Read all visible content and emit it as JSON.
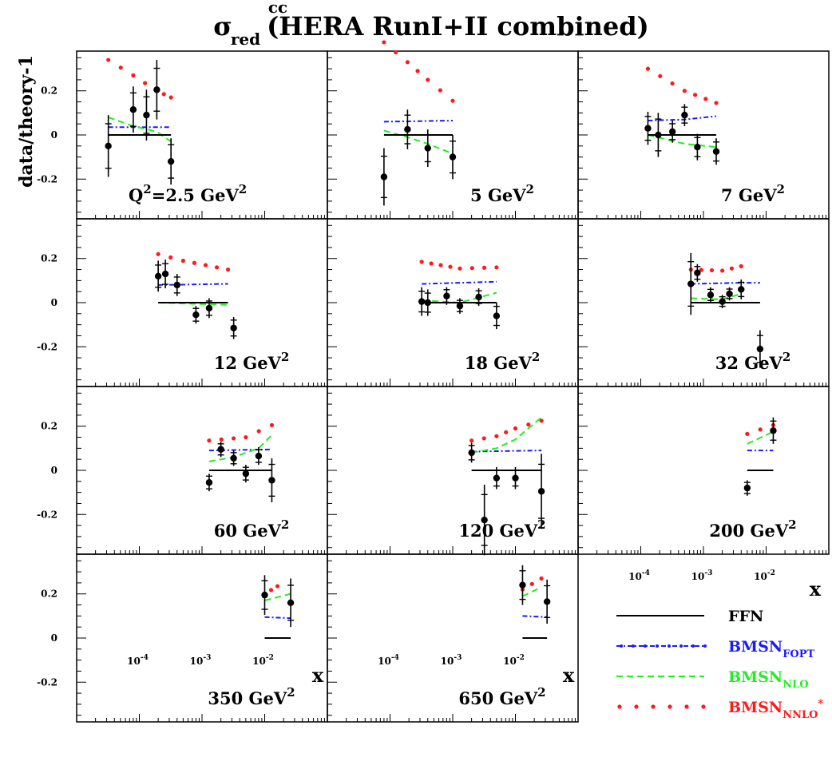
{
  "chart_data": {
    "type": "scatter",
    "title": {
      "sigma": "σ",
      "sup": "cc",
      "sub": "red",
      "text": "(HERA RunI+II combined)"
    },
    "ylabel": "data/theory-1",
    "xlabel": "x",
    "xscale": "log",
    "xlim": [
      1e-05,
      0.1
    ],
    "ylim": [
      -0.38,
      0.38
    ],
    "yticks": [
      {
        "value": 0.2,
        "label": "0.2"
      },
      {
        "value": 0,
        "label": "0"
      },
      {
        "value": -0.2,
        "label": "-0.2"
      }
    ],
    "xticks": [
      {
        "value": 0.0001,
        "base": "10",
        "exp": "-4"
      },
      {
        "value": 0.001,
        "base": "10",
        "exp": "-3"
      },
      {
        "value": 0.01,
        "base": "10",
        "exp": "-2"
      }
    ],
    "colors": {
      "FFN": "#000000",
      "BMSN_FOPT": "#1a1aff",
      "BMSN_NLO": "#22ee22",
      "BMSN_NNLO": "#ff1a1a",
      "data": "#000000"
    },
    "legend": {
      "placement": "bottom-right",
      "entries": [
        {
          "key": "FFN",
          "label": "FFN",
          "sub": "",
          "sup": ""
        },
        {
          "key": "BMSN_FOPT",
          "label": "BMSN",
          "sub": "FOPT",
          "sup": ""
        },
        {
          "key": "BMSN_NLO",
          "label": "BMSN",
          "sub": "NLO",
          "sup": ""
        },
        {
          "key": "BMSN_NNLO",
          "label": "BMSN",
          "sub": "NNLO",
          "sup": "*"
        }
      ]
    },
    "panels": [
      {
        "label_pre": "Q",
        "label_pre_sup": "2",
        "label": "=2.5 GeV",
        "label_sup": "2",
        "data": [
          [
            3.2e-05,
            -0.05,
            0.14
          ],
          [
            8e-05,
            0.115,
            0.105
          ],
          [
            0.00013,
            0.09,
            0.115
          ],
          [
            0.00019,
            0.205,
            0.135
          ],
          [
            0.00032,
            -0.12,
            0.105
          ]
        ],
        "FFN": [
          3.2e-05,
          0.00032
        ],
        "BMSN_FOPT": [
          [
            3.2e-05,
            0.035
          ],
          [
            0.00032,
            0.035
          ]
        ],
        "BMSN_NLO": [
          [
            3.2e-05,
            0.08
          ],
          [
            8e-05,
            0.04
          ],
          [
            0.00019,
            0.015
          ],
          [
            0.00032,
            -0.03
          ]
        ],
        "BMSN_NNLO": [
          [
            3.2e-05,
            0.34
          ],
          [
            8e-05,
            0.27
          ],
          [
            0.00019,
            0.2
          ],
          [
            0.00032,
            0.17
          ]
        ]
      },
      {
        "label_pre": "",
        "label_pre_sup": "",
        "label": "5 GeV",
        "label_sup": "2",
        "data": [
          [
            8e-05,
            -0.19,
            0.13
          ],
          [
            0.00019,
            0.025,
            0.09
          ],
          [
            0.0004,
            -0.06,
            0.085
          ],
          [
            0.001,
            -0.1,
            0.1
          ]
        ],
        "FFN": [
          8e-05,
          0.001
        ],
        "BMSN_FOPT": [
          [
            8e-05,
            0.06
          ],
          [
            0.001,
            0.065
          ]
        ],
        "BMSN_NLO": [
          [
            8e-05,
            0.02
          ],
          [
            0.00019,
            -0.01
          ],
          [
            0.0004,
            -0.04
          ],
          [
            0.001,
            -0.085
          ]
        ],
        "BMSN_NNLO": [
          [
            8e-05,
            0.42
          ],
          [
            0.00019,
            0.33
          ],
          [
            0.0004,
            0.25
          ],
          [
            0.001,
            0.155
          ]
        ]
      },
      {
        "label_pre": "",
        "label_pre_sup": "",
        "label": "7 GeV",
        "label_sup": "2",
        "data": [
          [
            0.00013,
            0.03,
            0.075
          ],
          [
            0.00019,
            0.0,
            0.1
          ],
          [
            0.00032,
            0.015,
            0.05
          ],
          [
            0.0005,
            0.09,
            0.05
          ],
          [
            0.0008,
            -0.055,
            0.06
          ],
          [
            0.0016,
            -0.075,
            0.06
          ]
        ],
        "FFN": [
          0.00013,
          0.0016
        ],
        "BMSN_FOPT": [
          [
            0.00013,
            0.065
          ],
          [
            0.0005,
            0.07
          ],
          [
            0.0016,
            0.085
          ]
        ],
        "BMSN_NLO": [
          [
            0.00013,
            0.0
          ],
          [
            0.0005,
            -0.04
          ],
          [
            0.0016,
            -0.055
          ]
        ],
        "BMSN_NNLO": [
          [
            0.00013,
            0.3
          ],
          [
            0.0005,
            0.2
          ],
          [
            0.0016,
            0.145
          ]
        ]
      },
      {
        "label_pre": "",
        "label_pre_sup": "",
        "label": "12 GeV",
        "label_sup": "2",
        "data": [
          [
            0.0002,
            0.12,
            0.07
          ],
          [
            0.00026,
            0.13,
            0.065
          ],
          [
            0.0004,
            0.08,
            0.05
          ],
          [
            0.0008,
            -0.055,
            0.04
          ],
          [
            0.0013,
            -0.025,
            0.045
          ],
          [
            0.0032,
            -0.115,
            0.05
          ]
        ],
        "FFN": [
          0.0002,
          0.0026
        ],
        "BMSN_FOPT": [
          [
            0.0002,
            0.08
          ],
          [
            0.0026,
            0.085
          ]
        ],
        "BMSN_NLO": [
          [
            0.0002,
            0.0
          ],
          [
            0.0026,
            -0.01
          ]
        ],
        "BMSN_NNLO": [
          [
            0.0002,
            0.22
          ],
          [
            0.0005,
            0.19
          ],
          [
            0.0026,
            0.15
          ]
        ]
      },
      {
        "label_pre": "",
        "label_pre_sup": "",
        "label": "18 GeV",
        "label_sup": "2",
        "data": [
          [
            0.00032,
            0.005,
            0.065
          ],
          [
            0.0004,
            0.0,
            0.06
          ],
          [
            0.0008,
            0.03,
            0.04
          ],
          [
            0.0013,
            -0.015,
            0.035
          ],
          [
            0.0026,
            0.025,
            0.04
          ],
          [
            0.005,
            -0.06,
            0.06
          ]
        ],
        "FFN": [
          0.00032,
          0.005
        ],
        "BMSN_FOPT": [
          [
            0.00032,
            0.085
          ],
          [
            0.005,
            0.095
          ]
        ],
        "BMSN_NLO": [
          [
            0.00032,
            0.01
          ],
          [
            0.0013,
            0.0
          ],
          [
            0.005,
            0.045
          ]
        ],
        "BMSN_NNLO": [
          [
            0.00032,
            0.185
          ],
          [
            0.0013,
            0.155
          ],
          [
            0.005,
            0.16
          ]
        ]
      },
      {
        "label_pre": "",
        "label_pre_sup": "",
        "label": "32 GeV",
        "label_sup": "2",
        "data": [
          [
            0.00063,
            0.085,
            0.14
          ],
          [
            0.0008,
            0.135,
            0.04
          ],
          [
            0.0013,
            0.035,
            0.035
          ],
          [
            0.002,
            0.005,
            0.03
          ],
          [
            0.0026,
            0.04,
            0.03
          ],
          [
            0.004,
            0.06,
            0.045
          ],
          [
            0.008,
            -0.21,
            0.085
          ]
        ],
        "FFN": [
          0.00063,
          0.008
        ],
        "BMSN_FOPT": [
          [
            0.00063,
            0.085
          ],
          [
            0.004,
            0.09
          ],
          [
            0.008,
            0.09
          ]
        ],
        "BMSN_NLO": [
          [
            0.00063,
            0.02
          ],
          [
            0.002,
            0.015
          ],
          [
            0.004,
            0.04
          ]
        ],
        "BMSN_NNLO": [
          [
            0.00063,
            0.15
          ],
          [
            0.002,
            0.145
          ],
          [
            0.004,
            0.165
          ]
        ]
      },
      {
        "label_pre": "",
        "label_pre_sup": "",
        "label": "60 GeV",
        "label_sup": "2",
        "data": [
          [
            0.0013,
            -0.055,
            0.04
          ],
          [
            0.002,
            0.095,
            0.035
          ],
          [
            0.0032,
            0.055,
            0.035
          ],
          [
            0.005,
            -0.015,
            0.04
          ],
          [
            0.008,
            0.065,
            0.04
          ],
          [
            0.013,
            -0.045,
            0.1
          ]
        ],
        "FFN": [
          0.0013,
          0.013
        ],
        "BMSN_FOPT": [
          [
            0.0013,
            0.09
          ],
          [
            0.013,
            0.095
          ]
        ],
        "BMSN_NLO": [
          [
            0.0013,
            0.04
          ],
          [
            0.0032,
            0.06
          ],
          [
            0.008,
            0.1
          ],
          [
            0.013,
            0.16
          ]
        ],
        "BMSN_NNLO": [
          [
            0.0013,
            0.135
          ],
          [
            0.005,
            0.15
          ],
          [
            0.013,
            0.205
          ]
        ]
      },
      {
        "label_pre": "",
        "label_pre_sup": "",
        "label": "120 GeV",
        "label_sup": "2",
        "data": [
          [
            0.002,
            0.08,
            0.045
          ],
          [
            0.0032,
            -0.225,
            0.16
          ],
          [
            0.005,
            -0.035,
            0.05
          ],
          [
            0.01,
            -0.035,
            0.05
          ],
          [
            0.026,
            -0.095,
            0.17
          ]
        ],
        "FFN": [
          0.002,
          0.026
        ],
        "BMSN_FOPT": [
          [
            0.002,
            0.085
          ],
          [
            0.026,
            0.09
          ]
        ],
        "BMSN_NLO": [
          [
            0.002,
            0.08
          ],
          [
            0.005,
            0.1
          ],
          [
            0.01,
            0.14
          ],
          [
            0.026,
            0.24
          ]
        ],
        "BMSN_NNLO": [
          [
            0.002,
            0.135
          ],
          [
            0.005,
            0.155
          ],
          [
            0.01,
            0.19
          ],
          [
            0.026,
            0.225
          ]
        ]
      },
      {
        "label_pre": "",
        "label_pre_sup": "",
        "label": "200 GeV",
        "label_sup": "2",
        "data": [
          [
            0.005,
            -0.08,
            0.035
          ],
          [
            0.013,
            0.18,
            0.06
          ]
        ],
        "FFN": [
          0.005,
          0.013
        ],
        "BMSN_FOPT": [
          [
            0.005,
            0.09
          ],
          [
            0.013,
            0.09
          ]
        ],
        "BMSN_NLO": [
          [
            0.005,
            0.12
          ],
          [
            0.013,
            0.175
          ]
        ],
        "BMSN_NNLO": [
          [
            0.005,
            0.165
          ],
          [
            0.013,
            0.205
          ]
        ]
      },
      {
        "label_pre": "",
        "label_pre_sup": "",
        "label": "350 GeV",
        "label_sup": "2",
        "data": [
          [
            0.01,
            0.195,
            0.09
          ],
          [
            0.026,
            0.16,
            0.11
          ]
        ],
        "FFN": [
          0.01,
          0.026
        ],
        "BMSN_FOPT": [
          [
            0.01,
            0.095
          ],
          [
            0.026,
            0.09
          ]
        ],
        "BMSN_NLO": [
          [
            0.01,
            0.17
          ],
          [
            0.026,
            0.2
          ]
        ],
        "BMSN_NNLO": [
          [
            0.01,
            0.2
          ],
          [
            0.016,
            0.235
          ]
        ]
      },
      {
        "label_pre": "",
        "label_pre_sup": "",
        "label": "650 GeV",
        "label_sup": "2",
        "data": [
          [
            0.013,
            0.24,
            0.09
          ],
          [
            0.032,
            0.165,
            0.1
          ]
        ],
        "FFN": [
          0.013,
          0.032
        ],
        "BMSN_FOPT": [
          [
            0.013,
            0.1
          ],
          [
            0.032,
            0.095
          ]
        ],
        "BMSN_NLO": [
          [
            0.013,
            0.19
          ],
          [
            0.026,
            0.23
          ]
        ],
        "BMSN_NNLO": [
          [
            0.013,
            0.22
          ],
          [
            0.026,
            0.27
          ]
        ]
      }
    ]
  }
}
